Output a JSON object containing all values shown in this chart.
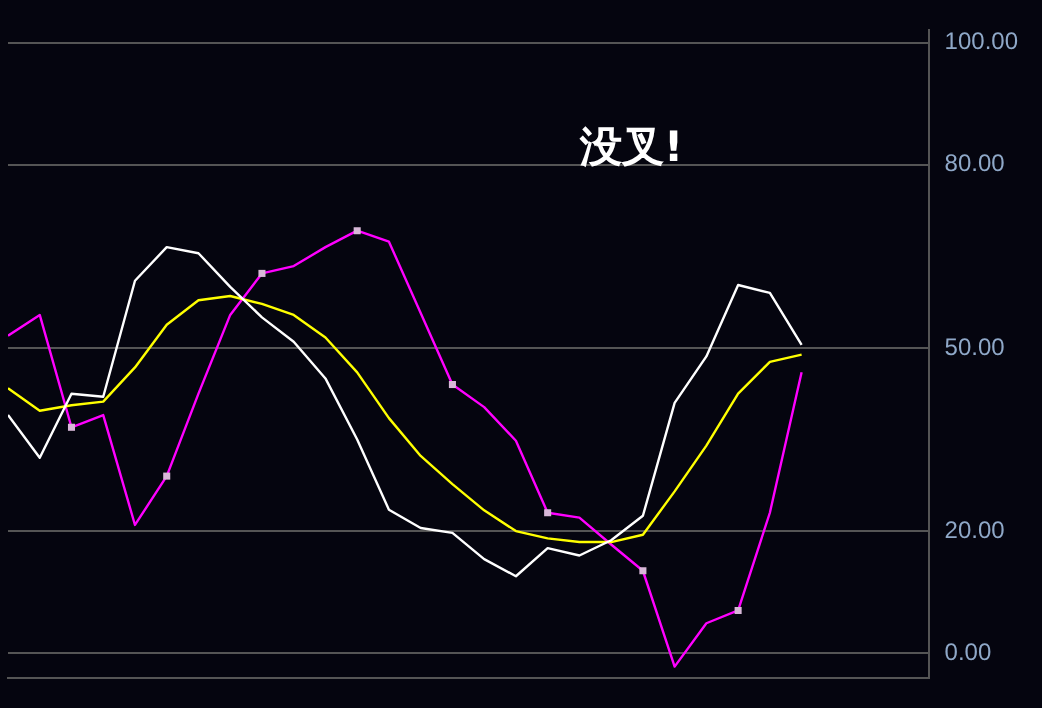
{
  "chart_data": {
    "type": "line",
    "categories": [
      null,
      null,
      null,
      null,
      null,
      null,
      null,
      null,
      null,
      null,
      null,
      null,
      null,
      null,
      null,
      null,
      null,
      null,
      null,
      null,
      null,
      null,
      null,
      null,
      null,
      null,
      null,
      null,
      null,
      null
    ],
    "series": [
      {
        "color": "#ffffff",
        "values": [
          39,
          32,
          42.5,
          42,
          61,
          66.5,
          65.5,
          60,
          55,
          51,
          45,
          35,
          23.5,
          20.5,
          19.7,
          15.4,
          12.6,
          17.2,
          16,
          18.5,
          22.5,
          41,
          48.6,
          60.3,
          59,
          50.5,
          null,
          null,
          null,
          null
        ]
      },
      {
        "color": "#ffff00",
        "values": [
          43.4,
          39.7,
          40.6,
          41.2,
          46.8,
          53.8,
          57.8,
          58.5,
          57.2,
          55.4,
          51.7,
          46,
          38.5,
          32.3,
          27.7,
          23.4,
          20,
          18.8,
          18.2,
          18.2,
          19.4,
          26.5,
          34,
          42.5,
          47.7,
          48.9,
          null,
          null,
          null,
          null
        ]
      },
      {
        "color": "#ff00ff",
        "values": [
          52,
          55.4,
          37,
          39,
          21,
          29,
          42.5,
          55.4,
          62.2,
          63.4,
          66.5,
          69.2,
          67.4,
          55.7,
          44,
          40.3,
          34.8,
          23,
          22.2,
          17.8,
          13.5,
          -2.2,
          4.9,
          7,
          23,
          46,
          null,
          null,
          null,
          null
        ]
      },
      {
        "type": "scatter",
        "marker": "square",
        "color": "#d8b8d8",
        "values": [
          null,
          null,
          37,
          null,
          null,
          29,
          null,
          null,
          62.2,
          null,
          null,
          69.2,
          null,
          null,
          44,
          null,
          null,
          23,
          null,
          null,
          13.5,
          null,
          null,
          7,
          null,
          null,
          null,
          null,
          null,
          null
        ]
      }
    ],
    "ylim": [
      -4,
      102
    ],
    "yticks": [
      {
        "value": 0,
        "label": "0.00"
      },
      {
        "value": 20,
        "label": "20.00"
      },
      {
        "value": 50,
        "label": "50.00"
      },
      {
        "value": 80,
        "label": "80.00"
      },
      {
        "value": 100,
        "label": "100.00"
      }
    ],
    "grid": "y",
    "legend": false,
    "marker": "none",
    "line_style": "solid",
    "tick_labels": "y",
    "annotations": [
      "没叉!"
    ]
  }
}
